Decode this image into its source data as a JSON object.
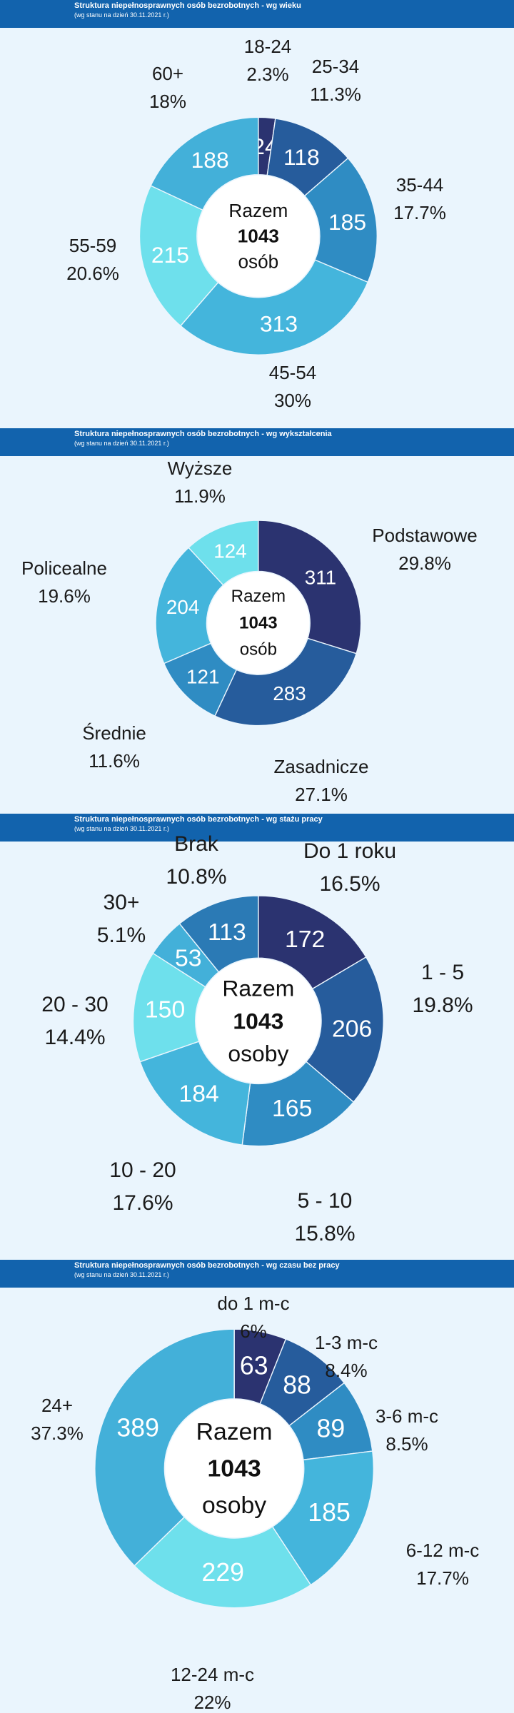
{
  "chart_data": [
    {
      "type": "donut",
      "title": "Struktura niepełnosprawnych osób bezrobotnych - wg wieku",
      "subtitle": "(wg stanu na dzień 30.11.2021 r.)",
      "center_lines": [
        "Razem",
        "1043",
        "osób"
      ],
      "categories": [
        "18-24",
        "25-34",
        "35-44",
        "45-54",
        "55-59",
        "60+"
      ],
      "values": [
        24,
        118,
        185,
        313,
        215,
        188
      ],
      "percents": [
        "2.3%",
        "11.3%",
        "17.7%",
        "30%",
        "20.6%",
        "18%"
      ],
      "colors": [
        "#2b3370",
        "#265c9c",
        "#2f8cc3",
        "#44b5dc",
        "#6ee0ec",
        "#43b0d9"
      ]
    },
    {
      "type": "donut",
      "title": "Struktura niepełnosprawnych osób bezrobotnych - wg wykształcenia",
      "subtitle": "(wg stanu na dzień 30.11.2021 r.)",
      "center_lines": [
        "Razem",
        "1043",
        "osób"
      ],
      "categories": [
        "Podstawowe",
        "Zasadnicze",
        "Średnie",
        "Policealne",
        "Wyższe"
      ],
      "values": [
        311,
        283,
        121,
        204,
        124
      ],
      "percents": [
        "29.8%",
        "27.1%",
        "11.6%",
        "19.6%",
        "11.9%"
      ],
      "colors": [
        "#2b3370",
        "#265c9c",
        "#2f8cc3",
        "#44b5dc",
        "#6ee0ec"
      ]
    },
    {
      "type": "donut",
      "title": "Struktura niepełnosprawnych osób bezrobotnych - wg stażu pracy",
      "subtitle": "(wg stanu na dzień 30.11.2021 r.)",
      "center_lines": [
        "Razem",
        "1043",
        "osoby"
      ],
      "categories": [
        "Do 1 roku",
        "1 - 5",
        "5 - 10",
        "10 - 20",
        "20 - 30",
        "30+",
        "Brak"
      ],
      "values": [
        172,
        206,
        165,
        184,
        150,
        53,
        113
      ],
      "percents": [
        "16.5%",
        "19.8%",
        "15.8%",
        "17.6%",
        "14.4%",
        "5.1%",
        "10.8%"
      ],
      "colors": [
        "#2b3370",
        "#265c9c",
        "#2f8cc3",
        "#44b5dc",
        "#6ee0ec",
        "#43b0d9",
        "#2b7ab5"
      ]
    },
    {
      "type": "donut",
      "title": "Struktura niepełnosprawnych osób bezrobotnych - wg czasu bez pracy",
      "subtitle": "(wg stanu na dzień 30.11.2021 r.)",
      "center_lines": [
        "Razem",
        "1043",
        "osoby"
      ],
      "categories": [
        "do 1 m-c",
        "1-3 m-c",
        "3-6 m-c",
        "6-12 m-c",
        "12-24 m-c",
        "24+"
      ],
      "values": [
        63,
        88,
        89,
        185,
        229,
        389
      ],
      "percents": [
        "6%",
        "8.4%",
        "8.5%",
        "17.7%",
        "22%",
        "37.3%"
      ],
      "colors": [
        "#2b3370",
        "#265c9c",
        "#2f8cc3",
        "#44b5dc",
        "#6ee0ec",
        "#43b0d9"
      ]
    }
  ]
}
